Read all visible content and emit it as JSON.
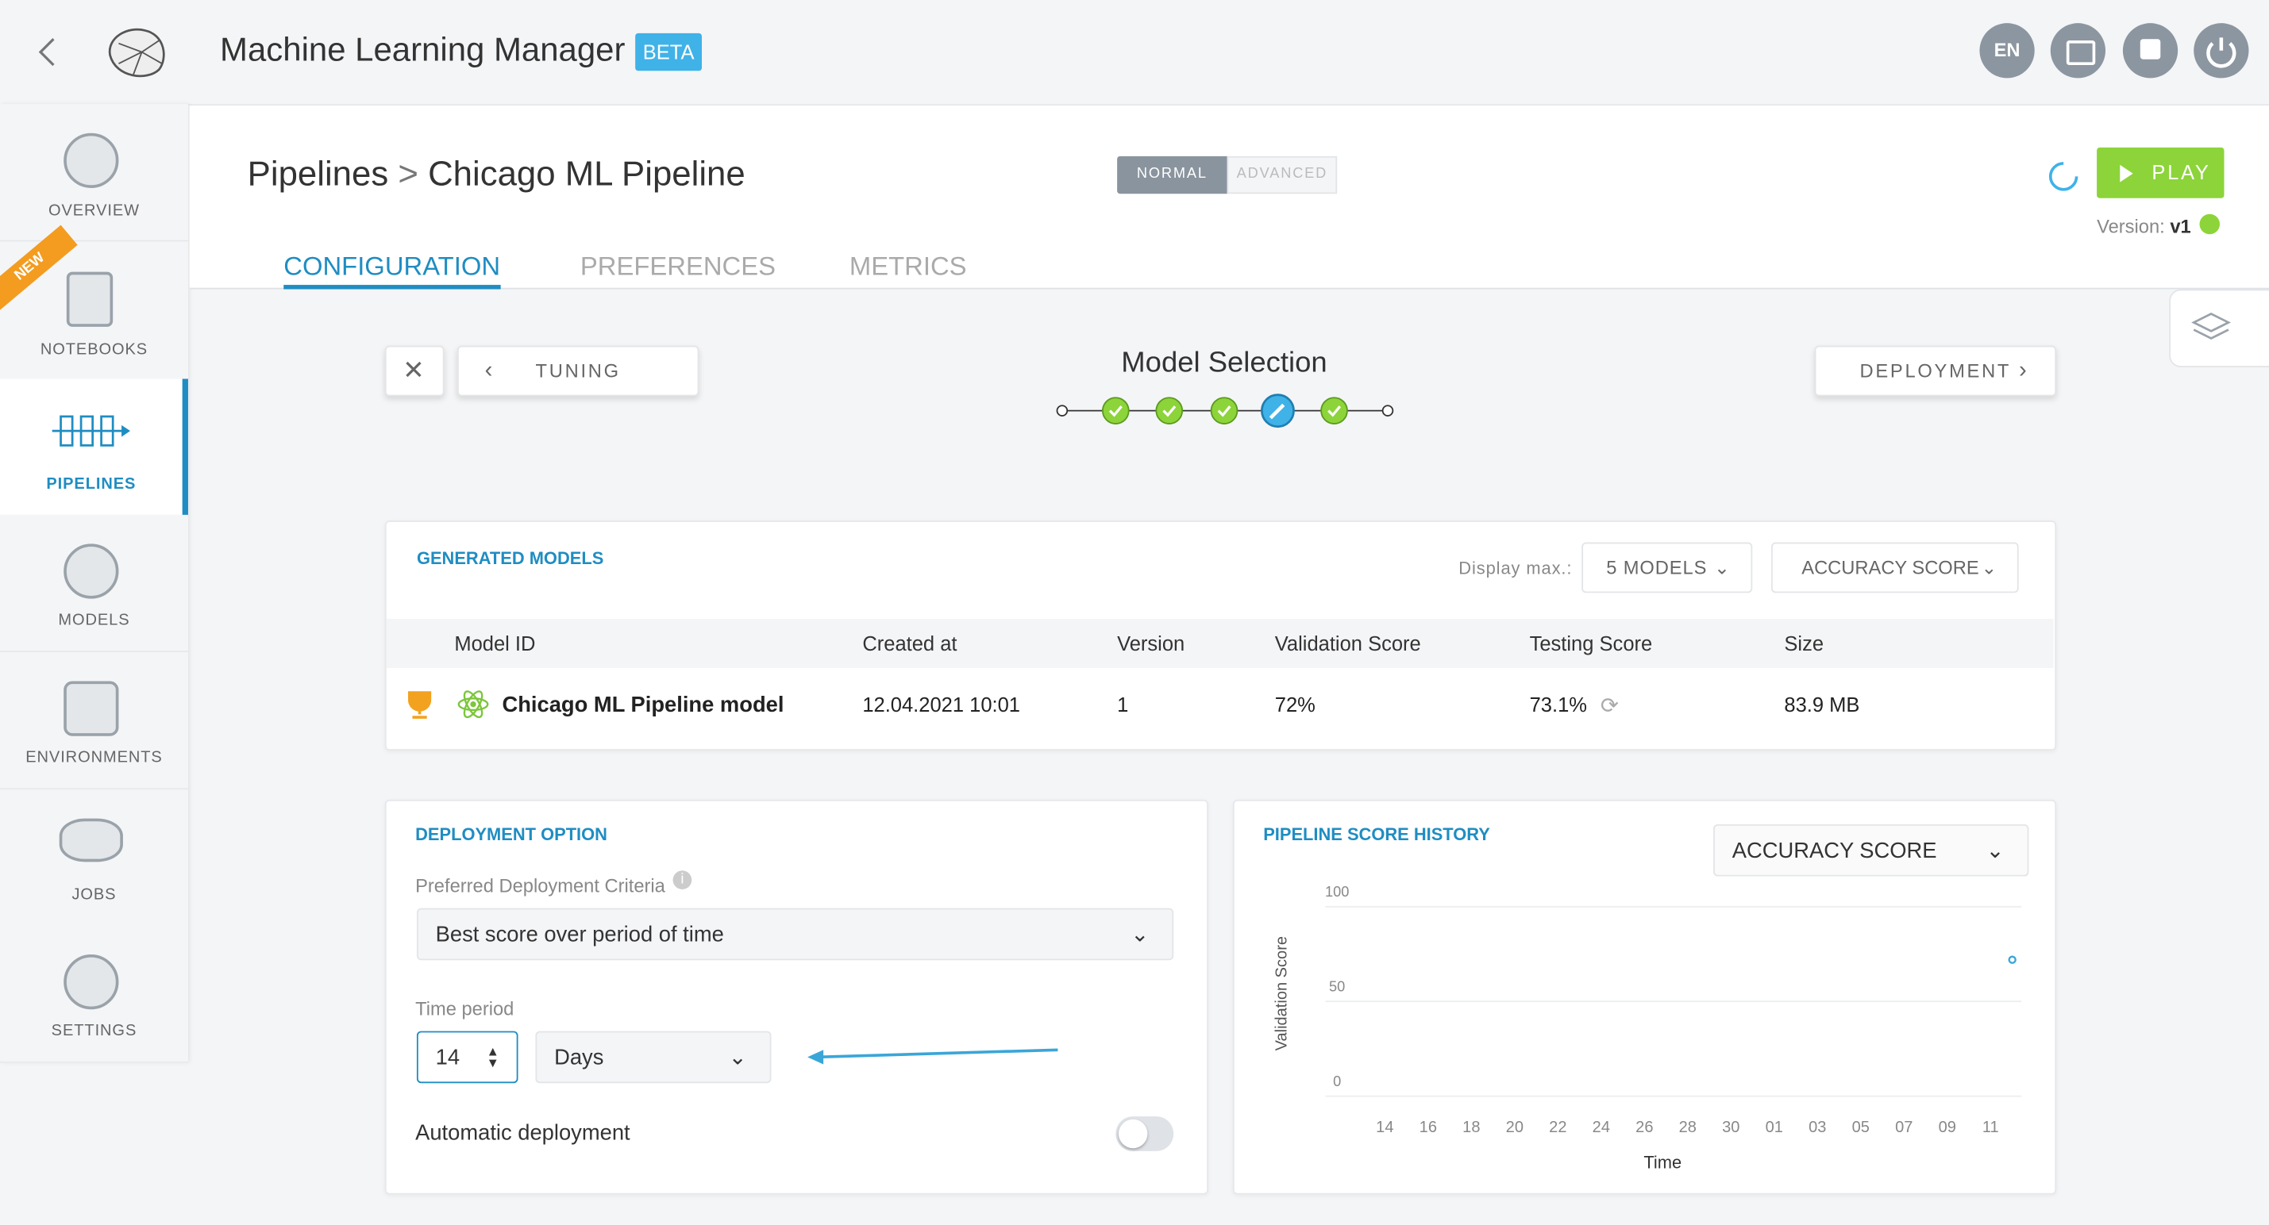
{
  "header": {
    "title": "Machine Learning Manager",
    "badge": "BETA",
    "language": "EN"
  },
  "sidebar": [
    "OVERVIEW",
    "NOTEBOOKS",
    "PIPELINES",
    "MODELS",
    "ENVIRONMENTS",
    "JOBS",
    "SETTINGS"
  ],
  "new_ribbon": "NEW",
  "breadcrumb": {
    "root": "Pipelines",
    "current": "Chicago ML Pipeline"
  },
  "mode": {
    "normal": "NORMAL",
    "advanced": "ADVANCED"
  },
  "play": "PLAY",
  "version": {
    "label": "Version:",
    "value": "v1"
  },
  "tabs": [
    "CONFIGURATION",
    "PREFERENCES",
    "METRICS"
  ],
  "steps": {
    "back": "TUNING",
    "title": "Model Selection",
    "next": "DEPLOYMENT"
  },
  "generated_models": {
    "title": "GENERATED MODELS",
    "display_max": "Display max.:",
    "count_select": "5 MODELS",
    "metric_select": "ACCURACY SCORE",
    "columns": [
      "Model ID",
      "Created at",
      "Version",
      "Validation Score",
      "Testing Score",
      "Size"
    ],
    "rows": [
      [
        "Chicago ML Pipeline model",
        "12.04.2021 10:01",
        "1",
        "72%",
        "73.1%",
        "83.9 MB"
      ]
    ]
  },
  "deployment": {
    "title": "DEPLOYMENT OPTION",
    "criteria_label": "Preferred Deployment Criteria",
    "criteria": "Best score over period of time",
    "period_label": "Time period",
    "period_value": "14",
    "period_unit": "Days",
    "automatic": "Automatic deployment"
  },
  "score_history": {
    "title": "PIPELINE SCORE HISTORY",
    "metric_select": "ACCURACY SCORE",
    "ylabel": "Validation Score",
    "xlabel": "Time",
    "ylim": [
      0,
      100
    ],
    "yticks": [
      0,
      50,
      100
    ],
    "categories": [
      "14",
      "16",
      "18",
      "20",
      "22",
      "24",
      "26",
      "28",
      "30",
      "01",
      "03",
      "05",
      "07",
      "09",
      "11"
    ],
    "values": [
      72
    ],
    "color": "#3aa6d8"
  }
}
